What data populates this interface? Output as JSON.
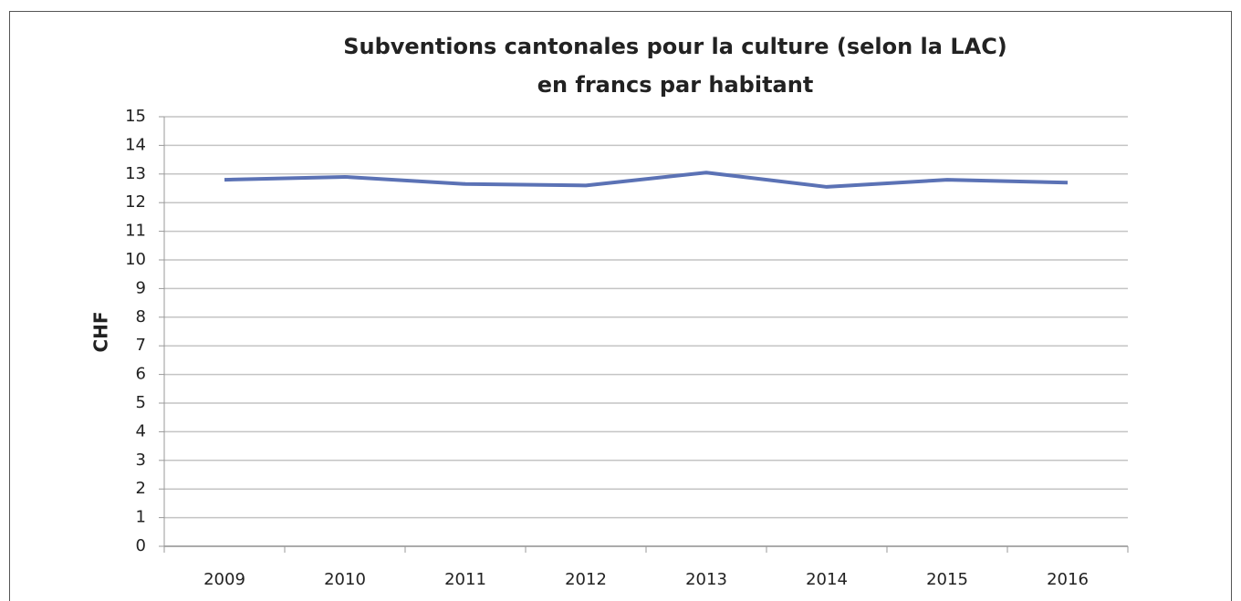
{
  "chart_data": {
    "type": "line",
    "title": "Subventions cantonales pour la culture (selon la LAC)",
    "subtitle": "en francs par habitant",
    "y_label": "CHF",
    "categories": [
      "2009",
      "2010",
      "2011",
      "2012",
      "2013",
      "2014",
      "2015",
      "2016"
    ],
    "series": [
      {
        "name": "CHF",
        "color": "#5b72b5",
        "values": [
          12.8,
          12.9,
          12.65,
          12.6,
          13.05,
          12.55,
          12.8,
          12.7
        ]
      }
    ],
    "ylim": [
      0,
      15
    ],
    "yticks": [
      0,
      1,
      2,
      3,
      4,
      5,
      6,
      7,
      8,
      9,
      10,
      11,
      12,
      13,
      14,
      15
    ],
    "grid": true
  }
}
